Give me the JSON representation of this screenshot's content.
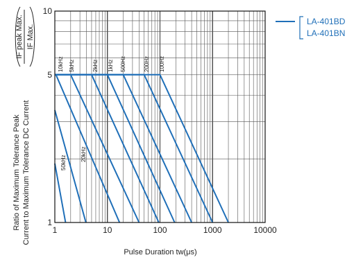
{
  "chart_data": {
    "type": "line",
    "title": "",
    "xlabel": "Pulse Duration tw(μs)",
    "ylabel_lines": [
      "Ratio of Maximum Tolerance Peak",
      "Current to Maximum Tolerance DC Current"
    ],
    "ylabel_formula": {
      "numerator": "IF peak Max.",
      "denominator": "IF Max."
    },
    "x_scale": "log",
    "y_scale": "log",
    "xlim": [
      1,
      10000
    ],
    "ylim": [
      1,
      10
    ],
    "x_ticks": [
      {
        "value": 1,
        "label": "1"
      },
      {
        "value": 10,
        "label": "10"
      },
      {
        "value": 100,
        "label": "100"
      },
      {
        "value": 1000,
        "label": "1000"
      },
      {
        "value": 10000,
        "label": "10000"
      }
    ],
    "y_ticks": [
      {
        "value": 1,
        "label": "1"
      },
      {
        "value": 5,
        "label": "5"
      },
      {
        "value": 10,
        "label": "10"
      }
    ],
    "grid": true,
    "line_color": "#1f6fb8",
    "legend": {
      "position": "top-right",
      "entries": [
        "LA-401BD",
        "LA-401BN"
      ]
    },
    "series": [
      {
        "name": "10kHz",
        "points": [
          [
            1,
            5
          ],
          [
            1.05,
            5
          ],
          [
            17,
            1
          ]
        ]
      },
      {
        "name": "5kHz",
        "points": [
          [
            1,
            5
          ],
          [
            2,
            5
          ],
          [
            40,
            1
          ]
        ]
      },
      {
        "name": "2kHz",
        "points": [
          [
            1,
            5
          ],
          [
            5,
            5
          ],
          [
            95,
            1
          ]
        ]
      },
      {
        "name": "1kHz",
        "points": [
          [
            1,
            5
          ],
          [
            10,
            5
          ],
          [
            190,
            1
          ]
        ]
      },
      {
        "name": "500Hz",
        "points": [
          [
            1,
            5
          ],
          [
            20,
            5
          ],
          [
            400,
            1
          ]
        ]
      },
      {
        "name": "200Hz",
        "points": [
          [
            1,
            5
          ],
          [
            50,
            5
          ],
          [
            1000,
            1
          ]
        ]
      },
      {
        "name": "100Hz",
        "points": [
          [
            1,
            5
          ],
          [
            100,
            5
          ],
          [
            2000,
            1
          ]
        ]
      },
      {
        "name": "20kHz",
        "points": [
          [
            1,
            3.4
          ],
          [
            3.9,
            1
          ]
        ]
      },
      {
        "name": "50kHz",
        "points": [
          [
            1,
            1.9
          ],
          [
            1.6,
            1
          ]
        ]
      }
    ]
  }
}
